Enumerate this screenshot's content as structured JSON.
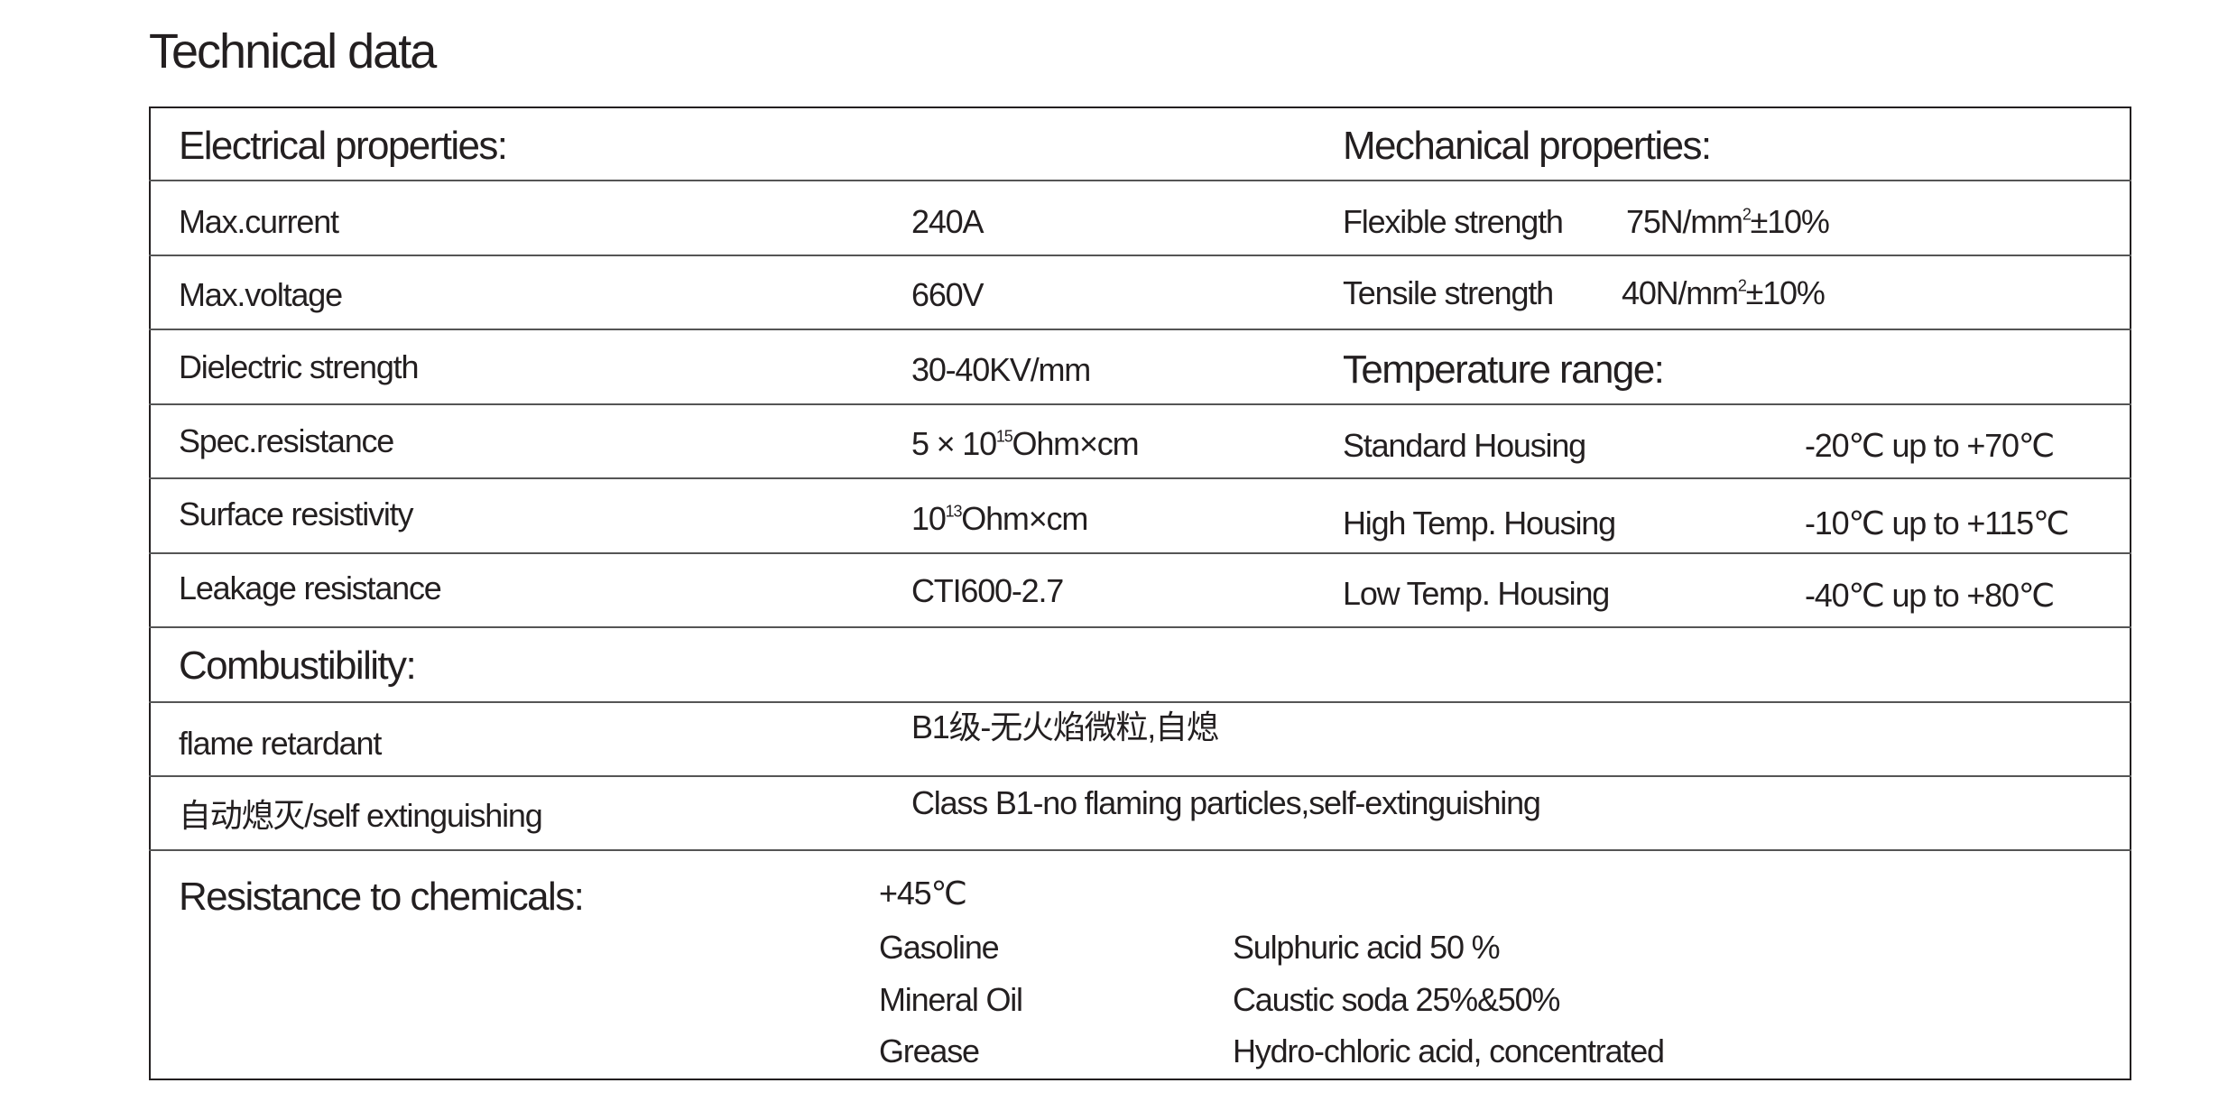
{
  "title": "Technical data",
  "electrical": {
    "heading": "Electrical properties:",
    "rows": [
      {
        "label": "Max.current",
        "value": "240A"
      },
      {
        "label": "Max.voltage",
        "value": "660V"
      },
      {
        "label": "Dielectric strength",
        "value": "30-40KV/mm"
      },
      {
        "label": "Spec.resistance",
        "value_pre": "5 × 10",
        "value_sup": "15",
        "value_post": "Ohm×cm"
      },
      {
        "label": "Surface resistivity",
        "value_pre": "10",
        "value_sup": "13",
        "value_post": "Ohm×cm"
      },
      {
        "label": "Leakage resistance",
        "value": "CTI600-2.7"
      }
    ]
  },
  "mechanical": {
    "heading": "Mechanical properties:",
    "rows": [
      {
        "label": "Flexible strength",
        "value_pre": "75N/mm",
        "value_sup": "2",
        "value_post": "±10%"
      },
      {
        "label": "Tensile strength",
        "value_pre": "40N/mm",
        "value_sup": "2",
        "value_post": "±10%"
      }
    ]
  },
  "temperature": {
    "heading": "Temperature range:",
    "rows": [
      {
        "label": "Standard Housing",
        "value": "-20℃ up to +70℃"
      },
      {
        "label": "High Temp. Housing",
        "value": "-10℃ up to +115℃"
      },
      {
        "label": "Low Temp. Housing",
        "value": "-40℃ up to +80℃"
      }
    ]
  },
  "combustibility": {
    "heading": "Combustibility:",
    "rows": [
      {
        "label": "flame retardant",
        "value": "B1级-无火焰微粒,自熄"
      },
      {
        "label": "自动熄灭/self extinguishing",
        "value": "Class B1-no flaming particles,self-extinguishing"
      }
    ]
  },
  "chemicals": {
    "heading": "Resistance to chemicals:",
    "temperature": "+45℃",
    "col1": [
      "Gasoline",
      "Mineral Oil",
      "Grease"
    ],
    "col2": [
      "Sulphuric acid 50 %",
      "Caustic soda 25%&50%",
      "Hydro-chloric acid, concentrated"
    ]
  }
}
